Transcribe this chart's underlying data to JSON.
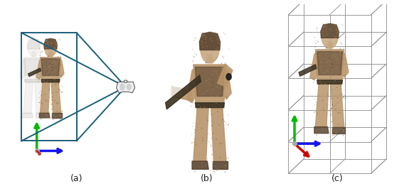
{
  "figsize": [
    5.82,
    2.76
  ],
  "dpi": 100,
  "background_color": "#ffffff",
  "labels": [
    "(a)",
    "(b)",
    "(c)"
  ],
  "label_fontsize": 9,
  "axes_colors": {
    "x": "#1515ee",
    "y": "#00bb00",
    "z": "#cc0000"
  },
  "frustum_color": "#1a5f7a",
  "voxel_color": "#999999",
  "soldier_skin": "#c8a882",
  "soldier_uniform": "#b0956a",
  "soldier_dark": "#6a5535",
  "soldier_equipment": "#3a3020"
}
